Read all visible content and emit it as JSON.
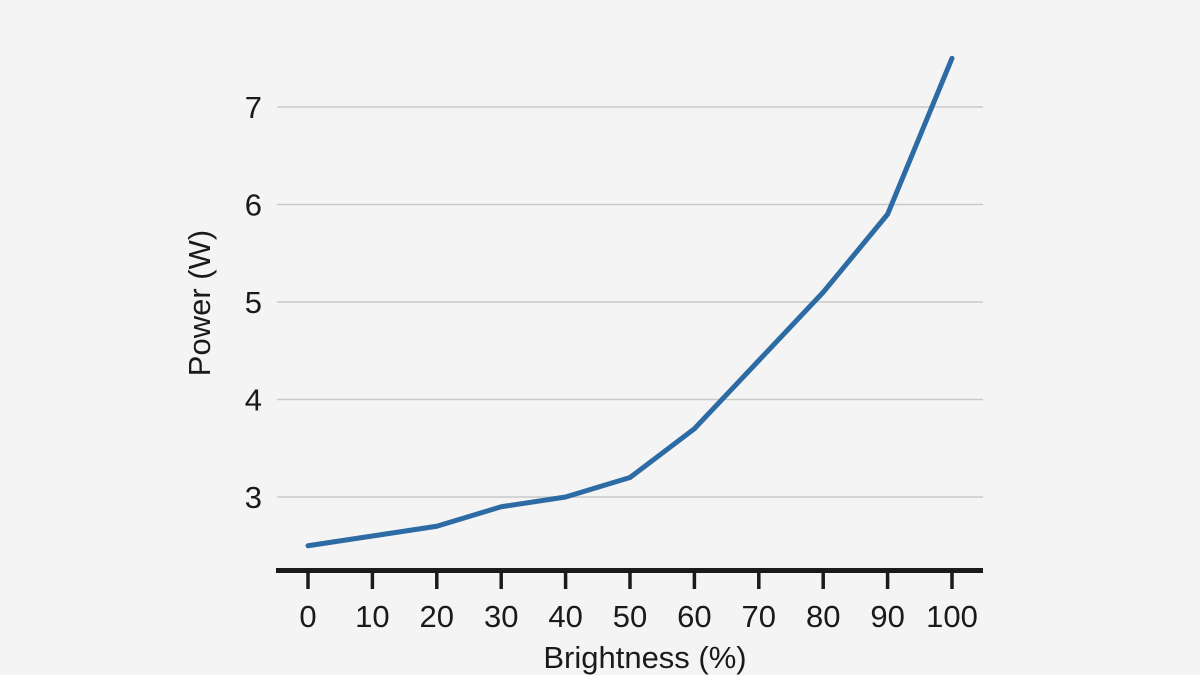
{
  "chart_data": {
    "type": "line",
    "title": "",
    "xlabel": "Brightness (%)",
    "ylabel": "Power (W)",
    "x": [
      0,
      10,
      20,
      30,
      40,
      50,
      60,
      70,
      80,
      90,
      100
    ],
    "series": [
      {
        "name": "Power",
        "values": [
          2.5,
          2.6,
          2.7,
          2.9,
          3.0,
          3.2,
          3.7,
          4.4,
          5.1,
          5.9,
          7.5
        ]
      }
    ],
    "x_ticks": [
      0,
      10,
      20,
      30,
      40,
      50,
      60,
      70,
      80,
      90,
      100
    ],
    "y_ticks": [
      3,
      4,
      5,
      6,
      7
    ],
    "xlim": [
      0,
      100
    ],
    "ylim": [
      2.25,
      7.75
    ],
    "grid": "horizontal-only",
    "legend": "none"
  },
  "colors": {
    "background": "#f4f4f4",
    "line": "#2d6ba4",
    "grid": "#c9c9c9",
    "axis": "#1a1a1a",
    "text": "#1a1a1a"
  }
}
